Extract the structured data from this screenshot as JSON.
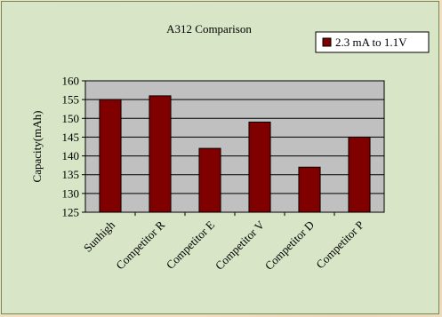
{
  "chart_data": {
    "type": "bar",
    "title": "A312 Comparison",
    "xlabel": "",
    "ylabel": "Capacity(mAh)",
    "categories": [
      "Sunhigh",
      "Competitor R",
      "Competitor E",
      "Competitor V",
      "Competitor D",
      "Competitor P"
    ],
    "series": [
      {
        "name": "2.3 mA to 1.1V",
        "values": [
          155,
          156,
          142,
          149,
          137,
          145
        ]
      }
    ],
    "ylim": [
      125,
      160
    ],
    "yticks": [
      125,
      130,
      135,
      140,
      145,
      150,
      155,
      160
    ],
    "grid": true,
    "legend_position": "top-right",
    "colors": {
      "bar": "#800000",
      "plot_background": "#c0c0c0",
      "chart_background": "#d8e5c6"
    }
  }
}
